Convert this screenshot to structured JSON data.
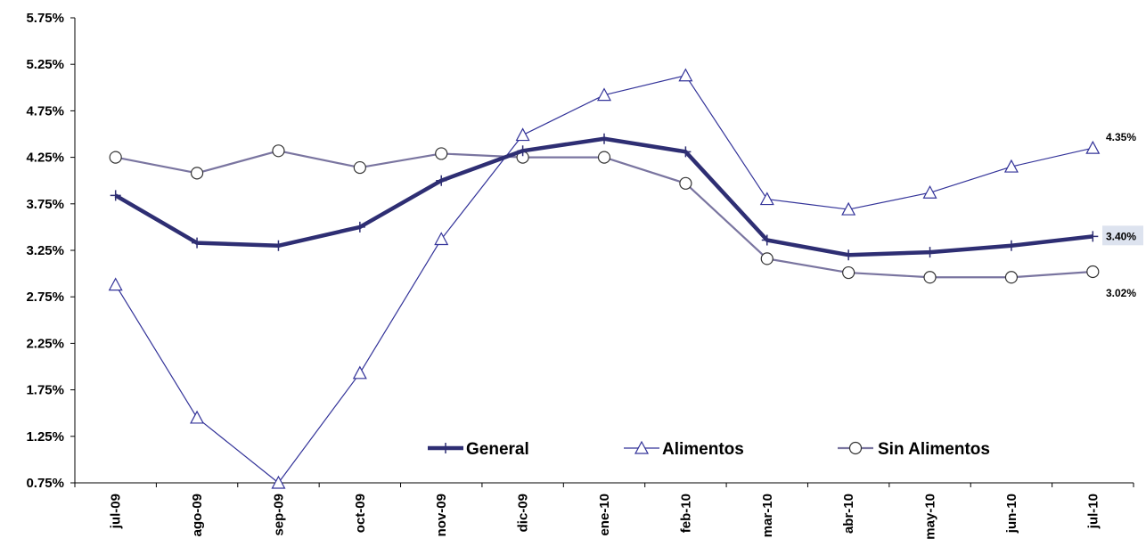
{
  "chart_data": {
    "type": "line",
    "categories": [
      "jul-09",
      "ago-09",
      "sep-09",
      "oct-09",
      "nov-09",
      "dic-09",
      "ene-10",
      "feb-10",
      "mar-10",
      "abr-10",
      "may-10",
      "jun-10",
      "jul-10"
    ],
    "y_ticks": [
      "0.75%",
      "1.25%",
      "1.75%",
      "2.25%",
      "2.75%",
      "3.25%",
      "3.75%",
      "4.25%",
      "4.75%",
      "5.25%",
      "5.75%"
    ],
    "ylim": [
      0.75,
      5.75
    ],
    "grid": false,
    "legend_position": "bottom-right",
    "series": [
      {
        "name": "General",
        "color": "#2e2e73",
        "marker": "plus",
        "values": [
          3.84,
          3.33,
          3.3,
          3.5,
          4.0,
          4.32,
          4.45,
          4.31,
          3.36,
          3.2,
          3.23,
          3.3,
          3.4
        ]
      },
      {
        "name": "Alimentos",
        "color": "#333399",
        "marker": "triangle",
        "values": [
          2.88,
          1.45,
          0.75,
          1.93,
          3.37,
          4.49,
          4.92,
          5.13,
          3.8,
          3.69,
          3.87,
          4.15,
          4.35
        ]
      },
      {
        "name": "Sin Alimentos",
        "color": "#7a75a0",
        "marker": "circle",
        "values": [
          4.25,
          4.08,
          4.32,
          4.14,
          4.29,
          4.25,
          4.25,
          3.97,
          3.16,
          3.01,
          2.96,
          2.96,
          3.02
        ]
      }
    ],
    "end_labels": [
      {
        "series": "Alimentos",
        "text": "4.35%"
      },
      {
        "series": "General",
        "text": "3.40%",
        "highlight": "#dde3ef"
      },
      {
        "series": "Sin Alimentos",
        "text": "3.02%"
      }
    ]
  }
}
